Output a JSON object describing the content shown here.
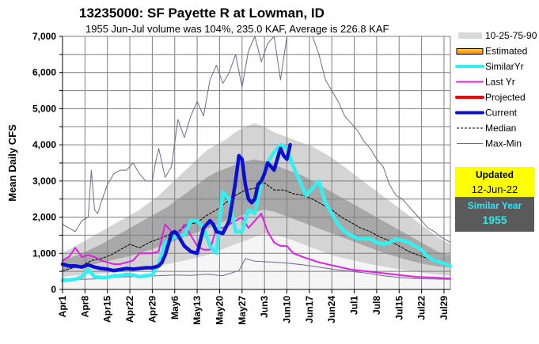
{
  "chart_data": {
    "type": "line",
    "title": "13235000: SF Payette R at Lowman, ID",
    "subtitle": "1955 Jun-Jul volume was 104%, 235.0 KAF, Average is 226.8 KAF",
    "xlabel": "",
    "ylabel": "Mean Daily CFS",
    "ylim": [
      0,
      7000
    ],
    "xlim_days": [
      0,
      121
    ],
    "x_origin": "Apr1",
    "grid": true,
    "y_ticks": [
      "0",
      "1,000",
      "2,000",
      "3,000",
      "4,000",
      "5,000",
      "6,000",
      "7,000"
    ],
    "y_tick_values": [
      0,
      1000,
      2000,
      3000,
      4000,
      5000,
      6000,
      7000
    ],
    "x_tick_labels": [
      "Apr1",
      "Apr8",
      "Apr15",
      "Apr22",
      "Apr29",
      "May6",
      "May13",
      "May20",
      "May27",
      "Jun3",
      "Jun10",
      "Jun17",
      "Jun24",
      "Jul1",
      "Jul8",
      "Jul15",
      "Jul22",
      "Jul29"
    ],
    "x_tick_days": [
      0,
      7,
      14,
      21,
      28,
      35,
      42,
      49,
      56,
      63,
      70,
      77,
      84,
      91,
      98,
      105,
      112,
      119
    ],
    "legend_position": "right",
    "legend": [
      {
        "label": "10-25-75-90",
        "kind": "band",
        "color": "#d9d9d9"
      },
      {
        "label": "Estimated",
        "kind": "bar",
        "color": "#ffa500"
      },
      {
        "label": "SimilarYr",
        "kind": "line",
        "color": "#33f0f0"
      },
      {
        "label": "Last Yr",
        "kind": "line",
        "color": "#e020e0"
      },
      {
        "label": "Projected",
        "kind": "line",
        "color": "#ff0000"
      },
      {
        "label": "Current",
        "kind": "line",
        "color": "#0a10d0"
      },
      {
        "label": "Median",
        "kind": "dashed",
        "color": "#000000"
      },
      {
        "label": "Max-Min",
        "kind": "thin",
        "color": "#6b6b90"
      }
    ],
    "percentile_days": [
      0,
      3,
      6,
      9,
      12,
      15,
      18,
      21,
      24,
      27,
      30,
      33,
      36,
      39,
      42,
      45,
      48,
      51,
      54,
      57,
      60,
      63,
      66,
      69,
      72,
      75,
      78,
      81,
      84,
      87,
      90,
      93,
      96,
      99,
      102,
      105,
      108,
      111,
      114,
      117,
      121
    ],
    "p10": [
      350,
      380,
      400,
      420,
      440,
      460,
      480,
      520,
      560,
      600,
      650,
      700,
      760,
      820,
      880,
      950,
      1050,
      1150,
      1250,
      1350,
      1450,
      1550,
      1500,
      1450,
      1350,
      1250,
      1150,
      1050,
      950,
      880,
      820,
      760,
      700,
      650,
      600,
      560,
      520,
      480,
      440,
      410,
      380
    ],
    "p25": [
      500,
      560,
      620,
      680,
      740,
      800,
      860,
      920,
      1000,
      1080,
      1180,
      1280,
      1380,
      1480,
      1580,
      1680,
      1780,
      1900,
      2000,
      2080,
      2150,
      2200,
      2150,
      2050,
      1950,
      1850,
      1750,
      1650,
      1550,
      1450,
      1350,
      1250,
      1150,
      1050,
      960,
      880,
      800,
      740,
      680,
      640,
      600
    ],
    "p75": [
      800,
      900,
      1000,
      1120,
      1250,
      1400,
      1550,
      1700,
      1850,
      2000,
      2150,
      2300,
      2500,
      2700,
      2900,
      3100,
      3250,
      3350,
      3450,
      3550,
      3600,
      3550,
      3450,
      3350,
      3250,
      3150,
      3000,
      2850,
      2700,
      2550,
      2400,
      2250,
      2100,
      1950,
      1800,
      1650,
      1500,
      1350,
      1200,
      1050,
      950
    ],
    "p90": [
      1000,
      1150,
      1300,
      1450,
      1600,
      1750,
      1900,
      2050,
      2200,
      2400,
      2600,
      2850,
      3100,
      3350,
      3600,
      3850,
      4000,
      4150,
      4350,
      4500,
      4600,
      4500,
      4350,
      4250,
      4150,
      4050,
      3950,
      3800,
      3650,
      3450,
      3250,
      3050,
      2850,
      2650,
      2450,
      2250,
      2050,
      1850,
      1650,
      1450,
      1250
    ],
    "series": [
      {
        "name": "Max",
        "days": [
          0,
          2,
          4,
          6,
          8,
          9,
          10,
          11,
          12,
          14,
          16,
          18,
          20,
          22,
          24,
          26,
          28,
          29,
          30,
          32,
          34,
          36,
          38,
          40,
          42,
          44,
          46,
          48,
          50,
          52,
          54,
          56,
          58,
          60,
          62,
          64,
          66,
          68,
          70,
          72,
          74,
          76,
          78,
          80,
          82,
          84,
          86,
          88,
          90,
          92,
          94,
          96,
          98,
          100,
          102,
          104,
          106,
          108,
          110,
          112,
          114,
          116,
          118,
          121
        ],
        "values": [
          1800,
          1700,
          1600,
          1900,
          2000,
          3300,
          2200,
          2100,
          2400,
          2900,
          3200,
          3300,
          3300,
          3500,
          3200,
          3000,
          3000,
          3500,
          3900,
          3100,
          3400,
          4700,
          4200,
          4800,
          5200,
          4800,
          5800,
          6200,
          5700,
          6000,
          6500,
          5600,
          6600,
          7500,
          6300,
          6800,
          7100,
          5800,
          7500,
          7500,
          7500,
          7500,
          7500,
          6500,
          5800,
          5500,
          5200,
          4800,
          4600,
          4400,
          4100,
          3900,
          3600,
          3400,
          2900,
          2600,
          2500,
          2300,
          2100,
          1900,
          1700,
          1600,
          1450,
          1300
        ]
      },
      {
        "name": "Min",
        "days": [
          0,
          5,
          10,
          15,
          20,
          25,
          30,
          35,
          40,
          45,
          50,
          55,
          57,
          60,
          65,
          70,
          75,
          80,
          85,
          90,
          95,
          100,
          105,
          110,
          115,
          121
        ],
        "values": [
          300,
          280,
          290,
          330,
          350,
          360,
          380,
          400,
          390,
          420,
          380,
          520,
          850,
          780,
          760,
          730,
          680,
          620,
          550,
          500,
          450,
          380,
          330,
          300,
          290,
          280
        ]
      },
      {
        "name": "Median",
        "days": [
          0,
          3,
          6,
          9,
          12,
          15,
          18,
          21,
          24,
          27,
          30,
          33,
          36,
          39,
          42,
          45,
          48,
          51,
          54,
          57,
          60,
          63,
          66,
          69,
          72,
          75,
          78,
          81,
          84,
          87,
          90,
          93,
          96,
          99,
          102,
          105,
          108,
          111,
          114,
          117,
          121
        ],
        "values": [
          500,
          600,
          650,
          800,
          850,
          950,
          1100,
          1250,
          1150,
          1300,
          1400,
          1500,
          1600,
          1800,
          1850,
          2050,
          2200,
          2400,
          2600,
          2750,
          2800,
          2950,
          2750,
          2750,
          2650,
          2600,
          2500,
          2350,
          2200,
          2000,
          1850,
          1700,
          1600,
          1450,
          1350,
          1200,
          1050,
          950,
          850,
          750,
          650
        ]
      },
      {
        "name": "Last Yr",
        "days": [
          0,
          2,
          4,
          6,
          8,
          10,
          12,
          14,
          16,
          18,
          20,
          22,
          24,
          26,
          28,
          30,
          32,
          34,
          36,
          38,
          40,
          42,
          44,
          46,
          48,
          50,
          52,
          54,
          56,
          58,
          60,
          62,
          64,
          66,
          68,
          70,
          72,
          75,
          80,
          85,
          90,
          95,
          100,
          105,
          110,
          115,
          121
        ],
        "values": [
          800,
          900,
          1150,
          900,
          950,
          900,
          800,
          750,
          700,
          700,
          750,
          800,
          1000,
          1000,
          1000,
          1050,
          1800,
          1600,
          1500,
          1800,
          1500,
          1200,
          1100,
          1100,
          1700,
          1700,
          1800,
          1900,
          2000,
          1700,
          1900,
          2100,
          1600,
          1300,
          1200,
          1200,
          1000,
          900,
          750,
          650,
          550,
          500,
          450,
          400,
          350,
          330,
          300
        ]
      },
      {
        "name": "SimilarYr",
        "days": [
          0,
          2,
          4,
          6,
          8,
          10,
          12,
          14,
          16,
          18,
          20,
          22,
          24,
          26,
          28,
          30,
          32,
          34,
          36,
          38,
          40,
          42,
          44,
          46,
          48,
          50,
          52,
          54,
          56,
          58,
          60,
          62,
          64,
          66,
          68,
          70,
          72,
          74,
          76,
          78,
          80,
          82,
          84,
          86,
          88,
          90,
          92,
          94,
          96,
          98,
          100,
          102,
          104,
          106,
          108,
          110,
          112,
          114,
          116,
          118,
          121
        ],
        "values": [
          250,
          260,
          280,
          350,
          550,
          350,
          330,
          330,
          380,
          380,
          420,
          400,
          350,
          380,
          400,
          700,
          1300,
          1400,
          1500,
          1500,
          1900,
          1900,
          1700,
          1200,
          1000,
          2700,
          2500,
          1600,
          1600,
          2200,
          2100,
          3000,
          3500,
          3800,
          4000,
          3900,
          3400,
          3000,
          2600,
          2800,
          3000,
          2400,
          2100,
          1800,
          1600,
          1500,
          1400,
          1400,
          1400,
          1300,
          1250,
          1300,
          1400,
          1350,
          1300,
          1200,
          1100,
          900,
          800,
          750,
          650
        ]
      },
      {
        "name": "Current",
        "days": [
          0,
          2,
          4,
          6,
          8,
          10,
          12,
          14,
          16,
          18,
          20,
          22,
          24,
          26,
          28,
          30,
          31,
          32,
          33,
          34,
          35,
          36,
          37,
          38,
          40,
          42,
          44,
          46,
          47,
          48,
          50,
          52,
          54,
          55,
          56,
          57,
          58,
          59,
          60,
          61,
          62,
          63,
          64,
          65,
          66,
          67,
          68,
          69,
          70,
          71
        ],
        "values": [
          700,
          650,
          650,
          620,
          680,
          620,
          580,
          560,
          520,
          550,
          580,
          560,
          580,
          600,
          600,
          650,
          750,
          950,
          1250,
          1550,
          1600,
          1500,
          1350,
          1200,
          1050,
          1000,
          1700,
          1900,
          1800,
          1600,
          1550,
          1900,
          3000,
          3700,
          3600,
          2900,
          2500,
          2400,
          2500,
          2900,
          3000,
          3200,
          3500,
          3400,
          3300,
          3600,
          3900,
          3700,
          3600,
          4000
        ]
      }
    ]
  },
  "side_panel": {
    "updated_label": "Updated",
    "updated_date": "12-Jun-22",
    "similar_year_label": "Similar Year",
    "similar_year_value": "1955"
  }
}
